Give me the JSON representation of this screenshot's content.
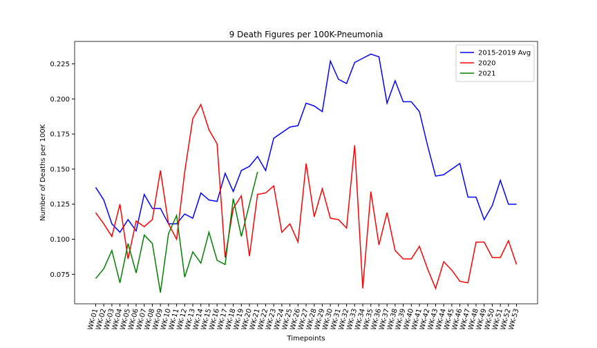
{
  "chart_data": {
    "type": "line",
    "title": "9 Death Figures per 100K-Pneumonia",
    "x_label": "Timepoints",
    "y_label": "Number of Deaths per 100K",
    "categories": [
      "WK-01",
      "WK-02",
      "WK-03",
      "WK-04",
      "WK-05",
      "WK-06",
      "WK-07",
      "WK-08",
      "WK-09",
      "WK-10",
      "WK-11",
      "WK-12",
      "WK-13",
      "WK-14",
      "WK-15",
      "WK-16",
      "WK-17",
      "WK-18",
      "WK-19",
      "WK-20",
      "WK-21",
      "WK-22",
      "WK-23",
      "WK-24",
      "WK-25",
      "WK-26",
      "WK-27",
      "WK-28",
      "WK-29",
      "WK-30",
      "WK-31",
      "WK-32",
      "WK-33",
      "WK-34",
      "WK-35",
      "WK-36",
      "WK-37",
      "WK-38",
      "WK-39",
      "WK-40",
      "WK-41",
      "WK-42",
      "WK-43",
      "WK-44",
      "WK-45",
      "WK-46",
      "WK-47",
      "WK-48",
      "WK-49",
      "WK-50",
      "WK-51",
      "WK-52",
      "WK-53"
    ],
    "series": [
      {
        "name": "2015-2019 Avg",
        "color": "#0000ff",
        "values": [
          0.137,
          0.128,
          0.111,
          0.105,
          0.114,
          0.106,
          0.132,
          0.122,
          0.122,
          0.111,
          0.111,
          0.118,
          0.115,
          0.133,
          0.128,
          0.127,
          0.147,
          0.134,
          0.149,
          0.152,
          0.159,
          0.149,
          0.172,
          0.176,
          0.18,
          0.181,
          0.197,
          0.195,
          0.191,
          0.227,
          0.214,
          0.211,
          0.226,
          0.229,
          0.232,
          0.23,
          0.197,
          0.213,
          0.198,
          0.198,
          0.191,
          0.167,
          0.145,
          0.146,
          0.15,
          0.154,
          0.13,
          0.13,
          0.114,
          0.124,
          0.142,
          0.125,
          0.125
        ]
      },
      {
        "name": "2020",
        "color": "#ff0000",
        "values": [
          0.119,
          0.111,
          0.102,
          0.125,
          0.086,
          0.113,
          0.109,
          0.114,
          0.149,
          0.111,
          0.1,
          0.148,
          0.186,
          0.196,
          0.178,
          0.168,
          0.087,
          0.122,
          0.131,
          0.088,
          0.132,
          0.133,
          0.138,
          0.105,
          0.111,
          0.098,
          0.154,
          0.116,
          0.136,
          0.115,
          0.114,
          0.108,
          0.167,
          0.065,
          0.134,
          0.096,
          0.119,
          0.092,
          0.086,
          0.086,
          0.095,
          0.079,
          0.065,
          0.084,
          0.078,
          0.07,
          0.069,
          0.098,
          0.098,
          0.087,
          0.087,
          0.099,
          0.082
        ]
      },
      {
        "name": "2021",
        "color": "#008000",
        "values": [
          0.072,
          0.079,
          0.092,
          0.069,
          0.097,
          0.076,
          0.103,
          0.097,
          0.062,
          0.104,
          0.117,
          0.073,
          0.091,
          0.083,
          0.105,
          0.085,
          0.082,
          0.129,
          0.102,
          0.125,
          0.148,
          null,
          null,
          null,
          null,
          null,
          null,
          null,
          null,
          null,
          null,
          null,
          null,
          null,
          null,
          null,
          null,
          null,
          null,
          null,
          null,
          null,
          null,
          null,
          null,
          null,
          null,
          null,
          null,
          null,
          null,
          null,
          null
        ]
      }
    ],
    "ylim": [
      0.054,
      0.241
    ],
    "yticks": [
      0.075,
      {
        "value": 0.1,
        "label": "0.100"
      },
      0.125,
      {
        "value": 0.15,
        "label": "0.150"
      },
      0.175,
      {
        "value": 0.2,
        "label": "0.200"
      },
      0.225
    ],
    "grid": false,
    "legend": "upper right"
  }
}
